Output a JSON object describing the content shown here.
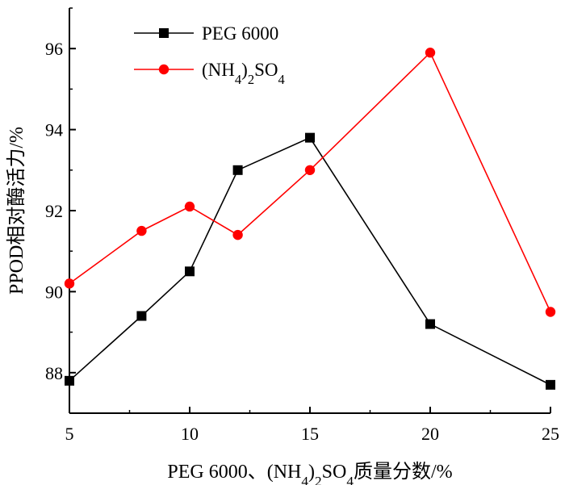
{
  "chart_data": {
    "type": "line",
    "title": "",
    "xlabel": "PEG 6000、(NH4)2SO4质量分数/%",
    "ylabel": "PPOD相对酶活力/%",
    "xlim": [
      5,
      25
    ],
    "ylim": [
      87,
      97
    ],
    "x_ticks": [
      5,
      10,
      15,
      20,
      25
    ],
    "y_ticks": [
      88,
      90,
      92,
      94,
      96
    ],
    "grid": false,
    "legend_position": "top-left",
    "series": [
      {
        "name": "PEG 6000",
        "color": "#000000",
        "marker": "square",
        "x": [
          5,
          8,
          10,
          12,
          15,
          20,
          25
        ],
        "y": [
          87.8,
          89.4,
          90.5,
          93.0,
          93.8,
          89.2,
          87.7
        ]
      },
      {
        "name": "(NH4)2SO4",
        "color": "#ff0000",
        "marker": "circle",
        "x": [
          5,
          8,
          10,
          12,
          15,
          20,
          25
        ],
        "y": [
          90.2,
          91.5,
          92.1,
          91.4,
          93.0,
          95.9,
          89.5
        ]
      }
    ]
  }
}
